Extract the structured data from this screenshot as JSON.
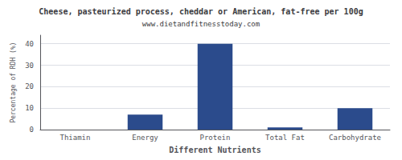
{
  "chart_data": {
    "type": "bar",
    "title": "Cheese, pasteurized process, cheddar or American, fat-free per 100g",
    "subtitle": "www.dietandfitnesstoday.com",
    "categories": [
      "Thiamin",
      "Energy",
      "Protein",
      "Total Fat",
      "Carbohydrate"
    ],
    "values": [
      0,
      7,
      40,
      1,
      10
    ],
    "color": "#2b4b8c",
    "xlabel": "Different Nutrients",
    "ylabel": "Percentage of RDH (%)",
    "ylim": [
      0,
      44
    ],
    "yticks": [
      0,
      10,
      20,
      30,
      40
    ],
    "grid": true
  }
}
